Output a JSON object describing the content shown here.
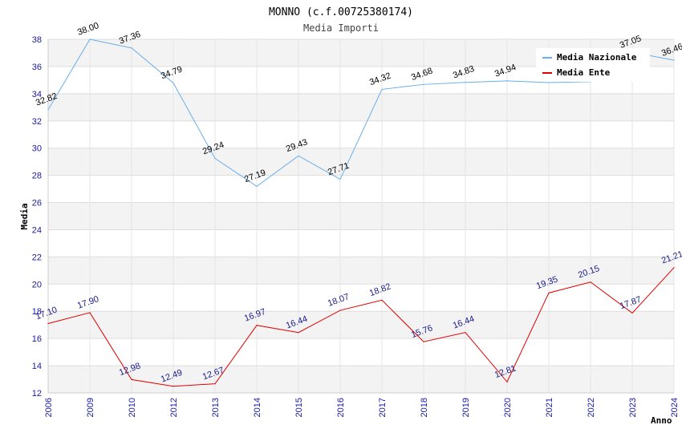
{
  "chart_data": {
    "type": "line",
    "title": "MONNO (c.f.00725380174)",
    "subtitle": "Media Importi",
    "xlabel": "Anno",
    "ylabel": "Media",
    "ylim": [
      12,
      38
    ],
    "yticks": [
      12,
      14,
      16,
      18,
      20,
      22,
      24,
      26,
      28,
      30,
      32,
      34,
      36,
      38
    ],
    "categories": [
      "2006",
      "2009",
      "2010",
      "2012",
      "2013",
      "2014",
      "2015",
      "2016",
      "2017",
      "2018",
      "2019",
      "2020",
      "2021",
      "2022",
      "2023",
      "2024"
    ],
    "series": [
      {
        "name": "Media Nazionale",
        "color": "#6aaee8",
        "values": [
          32.82,
          38.0,
          37.36,
          34.79,
          29.24,
          27.19,
          29.43,
          27.71,
          34.32,
          34.68,
          34.83,
          34.94,
          34.82,
          34.88,
          37.05,
          36.46
        ],
        "labels": [
          "32.82",
          "38.00",
          "37.36",
          "34.79",
          "29.24",
          "27.19",
          "29.43",
          "27.71",
          "34.32",
          "34.68",
          "34.83",
          "34.94",
          "",
          "",
          "37.05",
          "36.46"
        ]
      },
      {
        "name": "Media Ente",
        "color": "#e00000",
        "values": [
          17.1,
          17.9,
          12.98,
          12.49,
          12.67,
          16.97,
          16.44,
          18.07,
          18.82,
          15.76,
          16.44,
          12.81,
          19.35,
          20.15,
          17.87,
          21.21
        ],
        "labels": [
          "17.10",
          "17.90",
          "12.98",
          "12.49",
          "12.67",
          "16.97",
          "16.44",
          "18.07",
          "18.82",
          "15.76",
          "16.44",
          "12.81",
          "19.35",
          "20.15",
          "17.87",
          "21.21"
        ]
      }
    ],
    "legend": {
      "position": "top-right",
      "items": [
        "Media Nazionale",
        "Media Ente"
      ]
    },
    "grid": true
  }
}
